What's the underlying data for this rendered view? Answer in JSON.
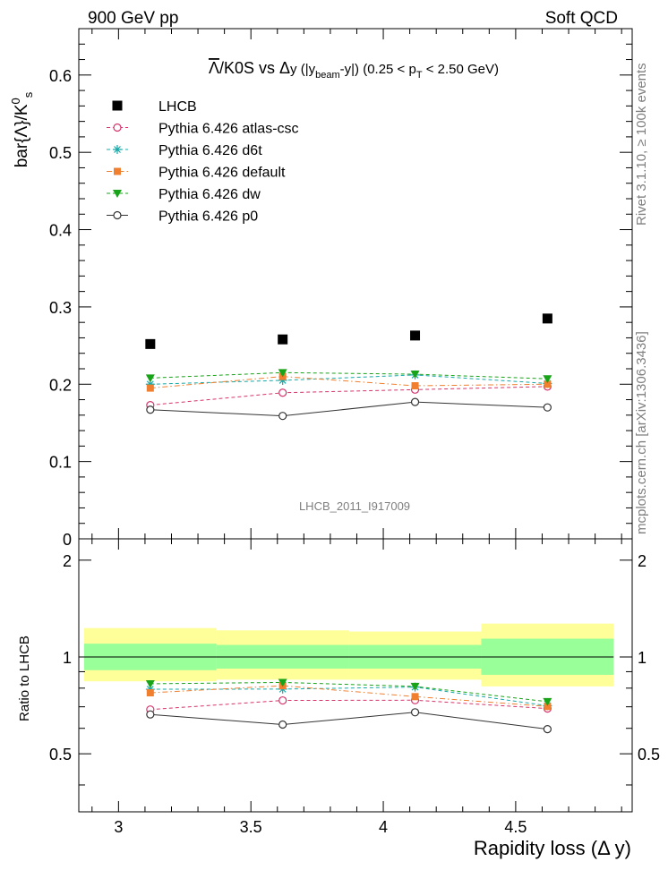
{
  "header": {
    "left": "900 GeV pp",
    "right": "Soft QCD"
  },
  "side_labels": {
    "rivet_prefix": "Rivet 3.1.10, ",
    "rivet_symbol": "≥",
    "rivet_suffix": " 100k events",
    "mcplots": "mcplots.cern.ch [arXiv:1306.3436]"
  },
  "watermark": "LHCB_2011_I917009",
  "colors": {
    "lhcb": "#000000",
    "atlas_csc": "#d6336c",
    "d6t": "#17a8a8",
    "default": "#f08030",
    "dw": "#19a319",
    "p0": "#333333",
    "band_outer": "#ffff99",
    "band_inner": "#99ff99"
  },
  "chart_data": {
    "type": "scatter",
    "title": {
      "overline": "Λ",
      "part1": "/K0S vs  ",
      "delta": "Δ",
      "part2": "y (|y",
      "sub_beam": "beam",
      "part3": "-y|) (0.25 < p",
      "sub_T": "T",
      "part4": " < 2.50 GeV)"
    },
    "ylabel": {
      "main": "bar{Λ}/K",
      "sup": "0",
      "sub": "s"
    },
    "ratio_ylabel": "Ratio to LHCB",
    "xlabel": "Rapidity loss (Δ y)",
    "xlim": [
      2.85,
      4.94
    ],
    "ylim": [
      0,
      0.66
    ],
    "ratio_ylim": [
      0.33,
      2.33
    ],
    "x_ticks": [
      "3",
      "3.5",
      "4",
      "4.5"
    ],
    "y_ticks": [
      "0",
      "0.1",
      "0.2",
      "0.3",
      "0.4",
      "0.5",
      "0.6"
    ],
    "ratio_ticks": [
      "0.5",
      "1",
      "2"
    ],
    "x_bins": [
      [
        2.87,
        3.37
      ],
      [
        3.37,
        3.87
      ],
      [
        3.87,
        4.37
      ],
      [
        4.37,
        4.87
      ]
    ],
    "x": [
      3.12,
      3.62,
      4.12,
      4.62
    ],
    "series": [
      {
        "name": "LHCB",
        "key": "lhcb",
        "marker": "square",
        "values": [
          0.252,
          0.258,
          0.263,
          0.285
        ]
      },
      {
        "name": "Pythia 6.426 atlas-csc",
        "key": "atlas_csc",
        "marker": "circle-open",
        "line": "dashed",
        "values": [
          0.173,
          0.189,
          0.193,
          0.197
        ]
      },
      {
        "name": "Pythia 6.426 d6t",
        "key": "d6t",
        "marker": "star",
        "line": "dashed",
        "values": [
          0.2,
          0.205,
          0.212,
          0.201
        ]
      },
      {
        "name": "Pythia 6.426 default",
        "key": "default",
        "marker": "square-small",
        "line": "dashdot",
        "values": [
          0.195,
          0.21,
          0.198,
          0.2
        ]
      },
      {
        "name": "Pythia 6.426 dw",
        "key": "dw",
        "marker": "triangle-down",
        "line": "dashed",
        "values": [
          0.208,
          0.215,
          0.213,
          0.207
        ]
      },
      {
        "name": "Pythia 6.426 p0",
        "key": "p0",
        "marker": "circle-open",
        "line": "solid",
        "values": [
          0.167,
          0.159,
          0.177,
          0.17
        ]
      }
    ],
    "ratio_band": {
      "inner_low": [
        0.91,
        0.92,
        0.92,
        0.88
      ],
      "inner_high": [
        1.1,
        1.09,
        1.09,
        1.14
      ],
      "outer_low": [
        0.84,
        0.85,
        0.85,
        0.81
      ],
      "outer_high": [
        1.23,
        1.21,
        1.2,
        1.27
      ]
    }
  }
}
